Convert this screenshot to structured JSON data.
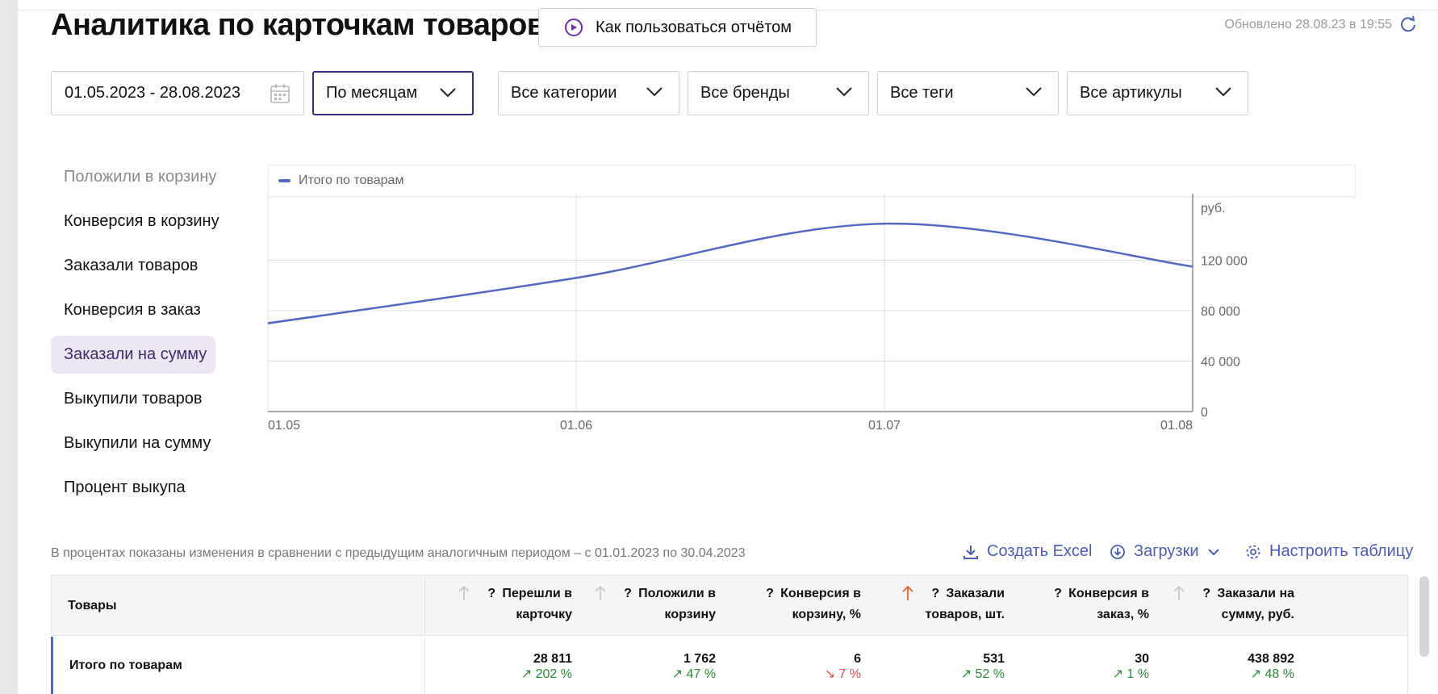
{
  "header": {
    "title": "Аналитика по карточкам товаров",
    "howto_label": "Как пользоваться отчётом",
    "updated": "Обновлено 28.08.23 в 19:55"
  },
  "filters": {
    "date_range": "01.05.2023 - 28.08.2023",
    "period": "По месяцам",
    "category": "Все категории",
    "brand": "Все бренды",
    "tags": "Все теги",
    "articles": "Все артикулы"
  },
  "metrics": [
    "Положили в корзину",
    "Конверсия в корзину",
    "Заказали товаров",
    "Конверсия в заказ",
    "Заказали на сумму",
    "Выкупили товаров",
    "Выкупили на сумму",
    "Процент выкупа"
  ],
  "selected_metric": "Заказали на сумму",
  "chart_data": {
    "type": "line",
    "legend": [
      "Итого по товарам"
    ],
    "x": [
      "01.05",
      "01.06",
      "01.07",
      "01.08"
    ],
    "series": [
      {
        "name": "Итого по товарам",
        "color": "#5567c0",
        "values": [
          70000,
          106000,
          149000,
          115000
        ]
      }
    ],
    "yunit": "руб.",
    "yticks": [
      "0",
      "40 000",
      "80 000",
      "120 000"
    ],
    "ylim": [
      0,
      160000
    ],
    "grid": true,
    "y_axis_position": "right"
  },
  "below_chart": {
    "note": "В процентах показаны изменения в сравнении с предыдущим аналогичным периодом – с 01.01.2023 по 30.04.2023",
    "excel": "Создать Excel",
    "downloads": "Загрузки",
    "configure": "Настроить таблицу"
  },
  "table": {
    "first_header": "Товары",
    "columns": [
      {
        "l1": "Перешли в",
        "l2": "карточку",
        "sort": "inactive"
      },
      {
        "l1": "Положили в",
        "l2": "корзину",
        "sort": "inactive"
      },
      {
        "l1": "Конверсия в",
        "l2": "корзину, %",
        "sort": "none"
      },
      {
        "l1": "Заказали",
        "l2": "товаров, шт.",
        "sort": "active"
      },
      {
        "l1": "Конверсия в",
        "l2": "заказ, %",
        "sort": "none"
      },
      {
        "l1": "Заказали на",
        "l2": "сумму, руб.",
        "sort": "inactive"
      }
    ],
    "q_mark": "?",
    "total_row": {
      "label": "Итого по товарам",
      "values": [
        "28 811",
        "1 762",
        "6",
        "531",
        "30",
        "438 892"
      ],
      "deltas": [
        "↗ 202 %",
        "↗ 47 %",
        "↘ 7 %",
        "↗ 52 %",
        "↗ 1 %",
        "↗ 48 %"
      ],
      "delta_dirs": [
        "up",
        "up",
        "down",
        "up",
        "up",
        "up"
      ]
    }
  }
}
